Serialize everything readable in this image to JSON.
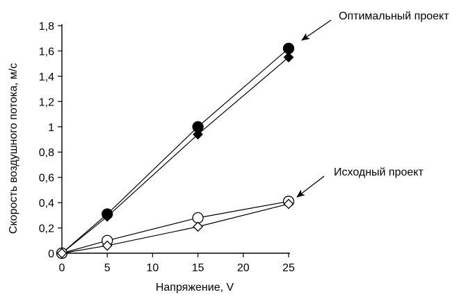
{
  "chart_data": {
    "type": "line",
    "xlabel": "Напряжение, V",
    "ylabel": "Скорость воздушного потока, м/с",
    "xlim": [
      0,
      25
    ],
    "ylim": [
      0,
      1.8
    ],
    "x_ticks": [
      0,
      5,
      10,
      15,
      20,
      25
    ],
    "x_tick_labels": [
      "0",
      "5",
      "10",
      "15",
      "20",
      "25"
    ],
    "y_ticks": [
      0,
      0.2,
      0.4,
      0.6,
      0.8,
      1.0,
      1.2,
      1.4,
      1.6,
      1.8
    ],
    "y_tick_labels": [
      "0",
      "0,2",
      "0,4",
      "0,6",
      "0,8",
      "1",
      "1,2",
      "1,4",
      "1,6",
      "1,8"
    ],
    "grid": false,
    "series": [
      {
        "marker": "circle-filled",
        "color": "#000000",
        "x": [
          0,
          5,
          15,
          25
        ],
        "y": [
          0,
          0.31,
          1.0,
          1.62
        ]
      },
      {
        "marker": "diamond-filled",
        "color": "#000000",
        "x": [
          0,
          5,
          15,
          25
        ],
        "y": [
          0,
          0.29,
          0.94,
          1.55
        ]
      },
      {
        "marker": "circle-open",
        "color": "#000000",
        "x": [
          0,
          5,
          15,
          25
        ],
        "y": [
          0,
          0.1,
          0.28,
          0.41
        ]
      },
      {
        "marker": "diamond-open",
        "color": "#000000",
        "x": [
          0,
          5,
          15,
          25
        ],
        "y": [
          0,
          0.06,
          0.21,
          0.39
        ]
      }
    ],
    "annotations": [
      {
        "text": "Оптимальный проект",
        "target_x": 25,
        "target_y": 1.66
      },
      {
        "text": "Исходный проект",
        "target_x": 25,
        "target_y": 0.44
      }
    ]
  }
}
